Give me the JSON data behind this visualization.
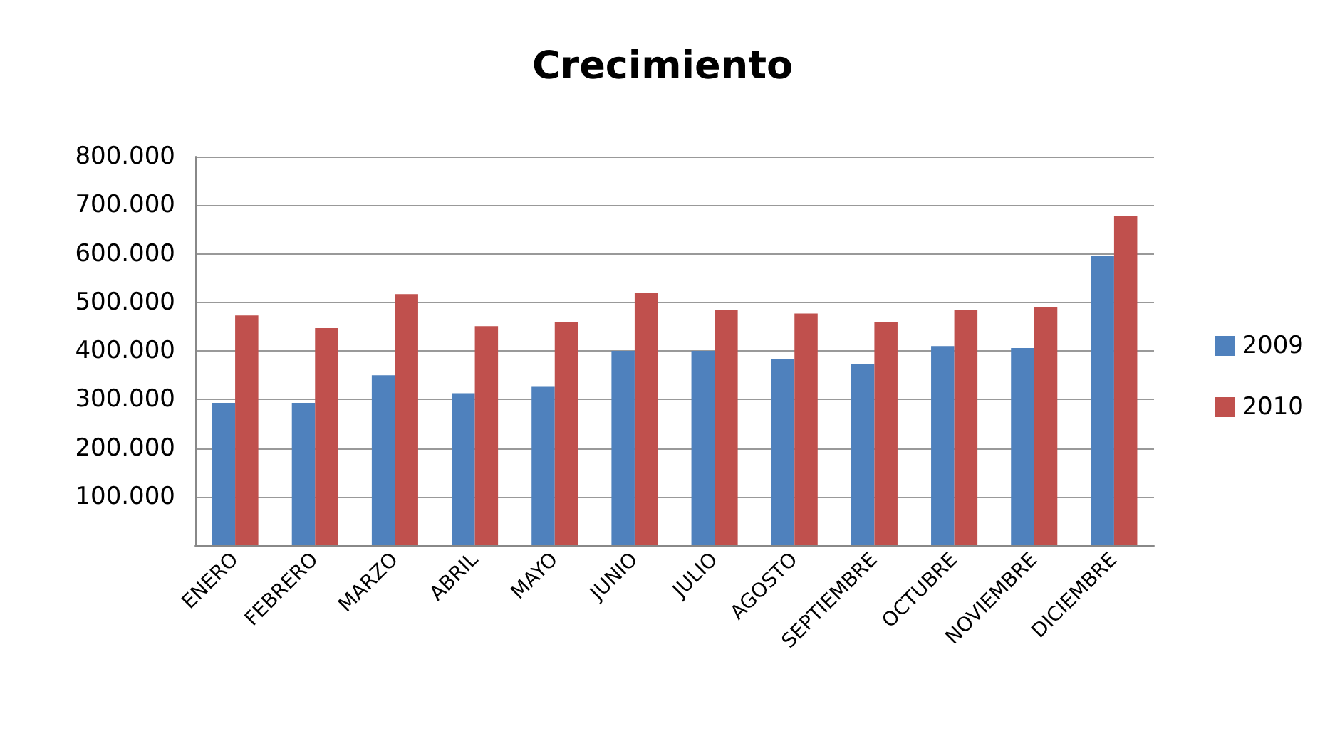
{
  "chart_data": {
    "type": "bar",
    "title": "Crecimiento",
    "categories": [
      "ENERO",
      "FEBRERO",
      "MARZO",
      "ABRIL",
      "MAYO",
      "JUNIO",
      "JULIO",
      "AGOSTO",
      "SEPTIEMBRE",
      "OCTUBRE",
      "NOVIEMBRE",
      "DICIEMBRE"
    ],
    "series": [
      {
        "name": "2009",
        "color": "#4f81bd",
        "values": [
          293000,
          293000,
          350000,
          313000,
          326000,
          400000,
          400000,
          383000,
          373000,
          410000,
          406000,
          595000
        ]
      },
      {
        "name": "2010",
        "color": "#c0504d",
        "values": [
          473000,
          447000,
          517000,
          451000,
          460000,
          520000,
          484000,
          477000,
          460000,
          484000,
          491000,
          678000
        ]
      }
    ],
    "ylim": [
      0,
      800000
    ],
    "yticks": [
      {
        "value": 100000,
        "label": "100.000"
      },
      {
        "value": 200000,
        "label": "200.000"
      },
      {
        "value": 300000,
        "label": "300.000"
      },
      {
        "value": 400000,
        "label": "400.000"
      },
      {
        "value": 500000,
        "label": "500.000"
      },
      {
        "value": 600000,
        "label": "600.000"
      },
      {
        "value": 700000,
        "label": "700.000"
      },
      {
        "value": 800000,
        "label": "800.000"
      }
    ],
    "grid": "y",
    "legend": "right"
  }
}
